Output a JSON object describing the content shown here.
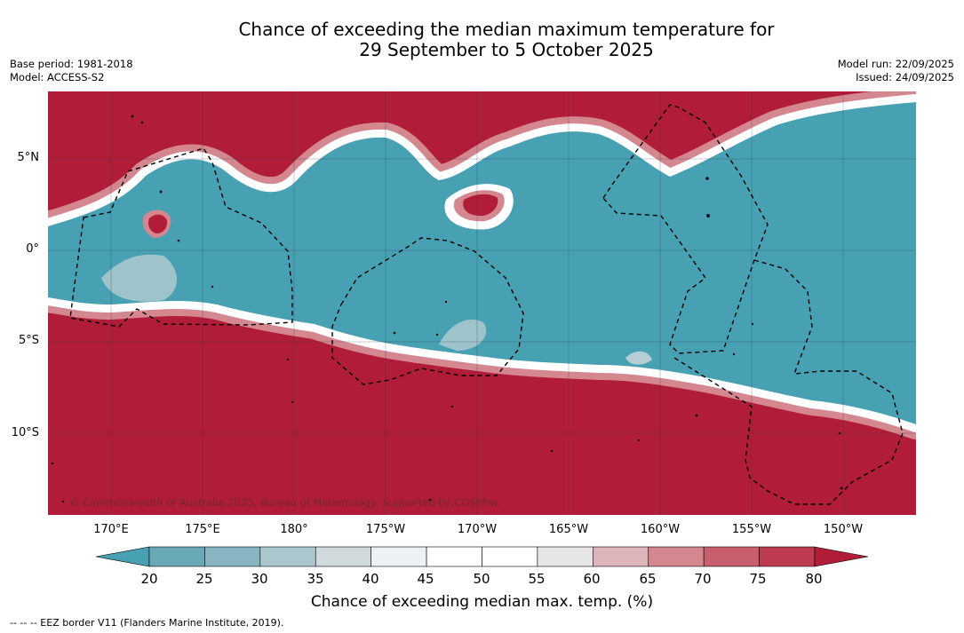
{
  "header": {
    "title_line1": "Chance of exceeding the median maximum temperature for",
    "title_line2": "29 September to 5 October 2025",
    "base_period": "Base period: 1981-2018",
    "model": "Model: ACCESS-S2",
    "model_run": "Model run: 22/09/2025",
    "issued": "Issued: 24/09/2025"
  },
  "map": {
    "latitude_labels": [
      "5°N",
      "0°",
      "5°S",
      "10°S"
    ],
    "longitude_labels": [
      "170°E",
      "175°E",
      "180°",
      "175°W",
      "170°W",
      "165°W",
      "160°W",
      "155°W",
      "150°W"
    ],
    "copyright": "© Commonwealth of Australia 2025, Bureau of Meteorology, supported by COSPPac",
    "colors": {
      "warm": "#b11c38",
      "cool": "#48a0b3",
      "neutral": "#ffffff"
    }
  },
  "colorbar": {
    "title": "Chance of exceeding median max. temp. (%)",
    "ticks": [
      "20",
      "25",
      "30",
      "35",
      "40",
      "45",
      "50",
      "55",
      "60",
      "65",
      "70",
      "75",
      "80"
    ],
    "colors": [
      "#69a9b6",
      "#87b6c2",
      "#a9c7cc",
      "#d0d9db",
      "#edf1f3",
      "#ffffff",
      "#ffffff",
      "#e8e5e6",
      "#ddb5bb",
      "#d58790",
      "#c95f6d",
      "#bc3b50"
    ],
    "under_color": "#48a0b3",
    "over_color": "#b11c38"
  },
  "footnote": "--  --  -- EEZ border V11 (Flanders Marine Institute, 2019)."
}
